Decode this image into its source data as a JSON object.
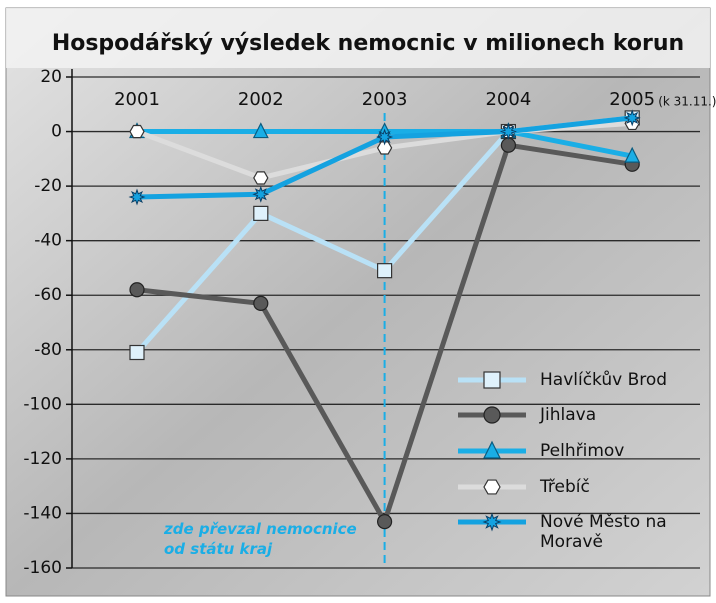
{
  "chart_data": {
    "type": "line",
    "title": "Hospodářský výsledek nemocnic v milionech korun",
    "categories": [
      "2001",
      "2002",
      "2003",
      "2004",
      "2005"
    ],
    "category_note": "(k 31.11.)",
    "annotation": "zde převzal nemocnice od státu kraj",
    "ylim": [
      -160,
      20
    ],
    "yticks": [
      -160,
      -140,
      -120,
      -100,
      -80,
      -60,
      -40,
      -20,
      0,
      20
    ],
    "grid": true,
    "legend": "lower right",
    "series": [
      {
        "name": "Havlíčkův Brod",
        "color": "#b9e1f6",
        "marker": "square",
        "values": [
          -81,
          -30,
          -51,
          0,
          5
        ]
      },
      {
        "name": "Jihlava",
        "color": "#595959",
        "marker": "circle",
        "values": [
          -58,
          -63,
          -143,
          -5,
          -12
        ]
      },
      {
        "name": "Pelhřimov",
        "color": "#1aaee6",
        "marker": "triangle",
        "values": [
          0,
          0,
          0,
          0,
          -9
        ]
      },
      {
        "name": "Třebíč",
        "color": "#dcdcdc",
        "marker": "hexagon",
        "values": [
          0,
          -17,
          -6,
          0,
          3
        ]
      },
      {
        "name": "Nové Město na Moravě",
        "color": "#14a2e0",
        "marker": "star",
        "values": [
          -24,
          -23,
          -2,
          0,
          5
        ]
      }
    ]
  }
}
